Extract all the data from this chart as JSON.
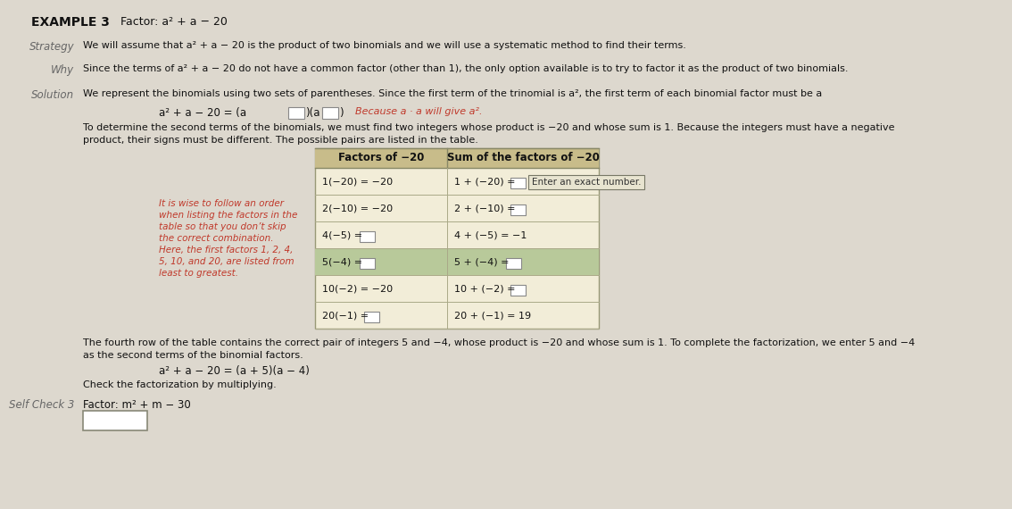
{
  "bg_color": "#ddd8ce",
  "title_label": "EXAMPLE 3",
  "title_factor": "Factor: a² + a − 20",
  "strategy_label": "Strategy",
  "strategy_text": "We will assume that a² + a − 20 is the product of two binomials and we will use a systematic method to find their terms.",
  "why_label": "Why",
  "why_text": "Since the terms of a² + a − 20 do not have a common factor (other than 1), the only option available is to try to factor it as the product of two binomials.",
  "solution_label": "Solution",
  "solution_text": "We represent the binomials using two sets of parentheses. Since the first term of the trinomial is a², the first term of each binomial factor must be a",
  "para_text1": "To determine the second terms of the binomials, we must find two integers whose product is −20 and whose sum is 1. Because the integers must have a negative",
  "para_text2": "product, their signs must be different. The possible pairs are listed in the table.",
  "sidebar_lines": [
    "It is wise to follow an order",
    "when listing the factors in the",
    "table so that you don’t skip",
    "the correct combination.",
    "Here, the first factors 1, 2, 4,",
    "5, 10, and 20, are listed from",
    "least to greatest."
  ],
  "table_header_col1": "Factors of −20",
  "table_header_col2": "Sum of the factors of −20",
  "col1_texts": [
    "1(−20) = −20",
    "2(−10) = −20",
    "4(−5) = ",
    "5(−4) = ",
    "10(−2) = −20",
    "20(−1) = "
  ],
  "col1_has_box": [
    false,
    false,
    true,
    true,
    false,
    true
  ],
  "col2_texts": [
    "1 + (−20) = ",
    "2 + (−10) = ",
    "4 + (−5) = −1",
    "5 + (−4) = ",
    "10 + (−2) = ",
    "20 + (−1) = 19"
  ],
  "col2_has_box": [
    true,
    true,
    false,
    true,
    true,
    false
  ],
  "row_highlight": [
    false,
    false,
    false,
    true,
    false,
    false
  ],
  "tooltip_text": "Enter an exact number.",
  "fourth_row_text": "The fourth row of the table contains the correct pair of integers 5 and −4, whose product is −20 and whose sum is 1. To complete the factorization, we enter 5 and −4",
  "fourth_row_text2": "as the second terms of the binomial factors.",
  "final_equation": "a² + a − 20 = (a + 5)(a − 4)",
  "check_text": "Check the factorization by multiplying.",
  "self_check_label": "Self Check 3",
  "self_check_text": "Factor: m² + m − 30",
  "table_bg": "#f2edd8",
  "table_header_bg": "#c8bc8a",
  "highlight_row_bg": "#b8c99a",
  "sidebar_color": "#c0392b",
  "because_color": "#c0392b",
  "text_color": "#111111",
  "label_color": "#666666",
  "white": "#ffffff"
}
